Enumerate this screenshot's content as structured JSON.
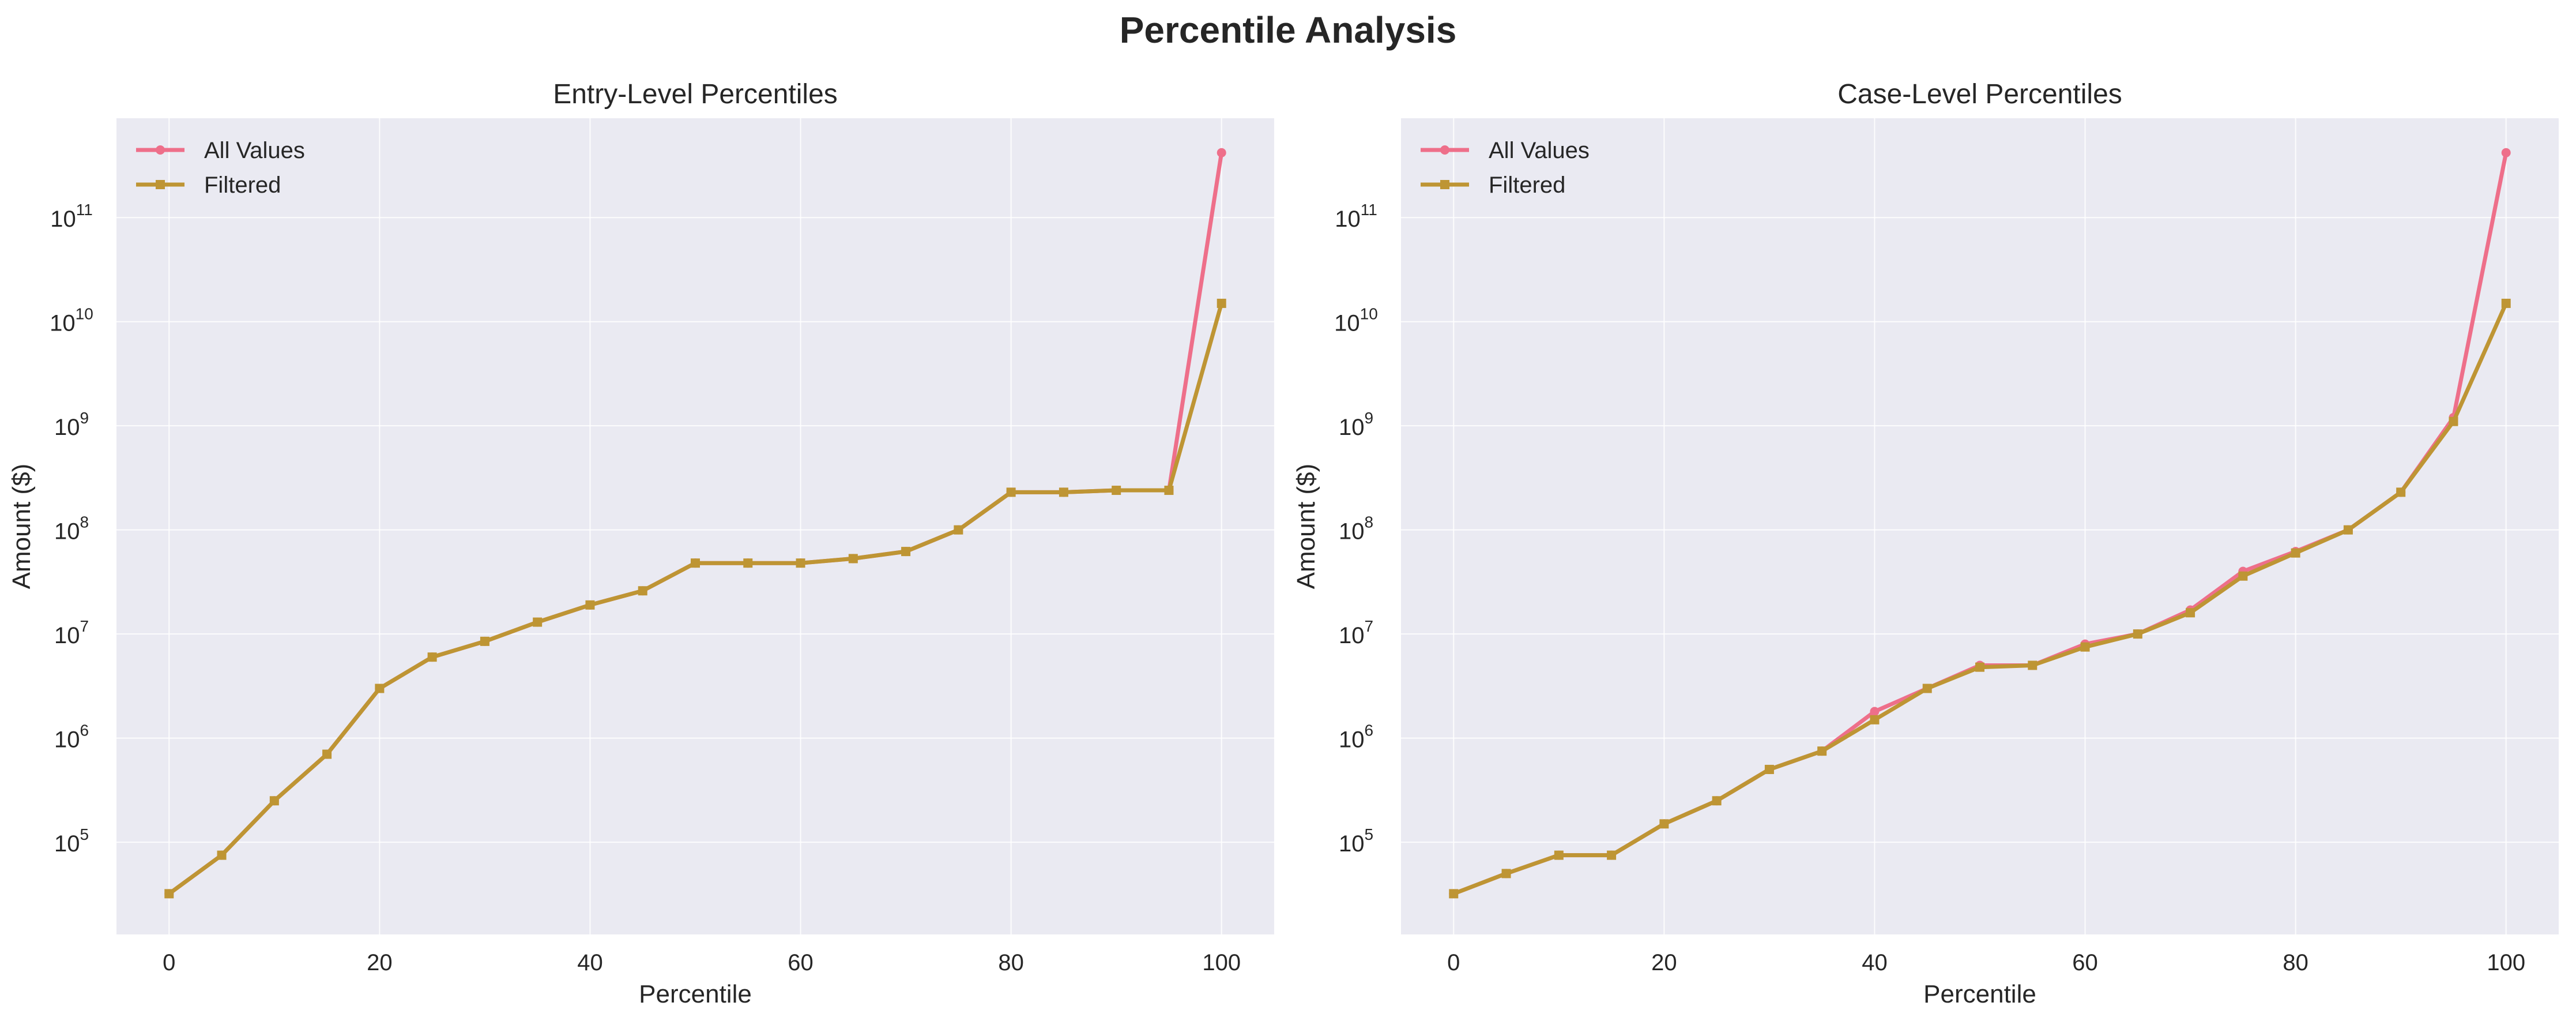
{
  "figure_title": "Percentile Analysis",
  "colors": {
    "all_values": "#EE6F8A",
    "filtered": "#BE9534",
    "background": "#EAEAF2"
  },
  "chart_data": [
    {
      "type": "line",
      "title": "Entry-Level Percentiles",
      "xlabel": "Percentile",
      "ylabel": "Amount ($)",
      "yscale": "log",
      "xlim": [
        -5,
        105
      ],
      "ylim": [
        13000,
        900000000000
      ],
      "xticks": [
        0,
        20,
        40,
        60,
        80,
        100
      ],
      "yticks_exponents": [
        5,
        6,
        7,
        8,
        9,
        10,
        11
      ],
      "grid": true,
      "legend_position": "upper left",
      "x": [
        0,
        5,
        10,
        15,
        20,
        25,
        30,
        35,
        40,
        45,
        50,
        55,
        60,
        65,
        70,
        75,
        80,
        85,
        90,
        95,
        100
      ],
      "series": [
        {
          "name": "All Values",
          "marker": "circle",
          "values": [
            32000,
            75000,
            250000,
            700000,
            3000000,
            6000000,
            8500000,
            13000000,
            19000000,
            26000000,
            48000000,
            48000000,
            48000000,
            53000000,
            62000000,
            100000000,
            230000000,
            230000000,
            240000000,
            240000000,
            420000000000
          ]
        },
        {
          "name": "Filtered",
          "marker": "square",
          "values": [
            32000,
            75000,
            250000,
            700000,
            3000000,
            6000000,
            8500000,
            13000000,
            19000000,
            26000000,
            48000000,
            48000000,
            48000000,
            53000000,
            62000000,
            100000000,
            230000000,
            230000000,
            240000000,
            240000000,
            15000000000
          ]
        }
      ]
    },
    {
      "type": "line",
      "title": "Case-Level Percentiles",
      "xlabel": "Percentile",
      "ylabel": "Amount ($)",
      "yscale": "log",
      "xlim": [
        -5,
        105
      ],
      "ylim": [
        13000,
        900000000000
      ],
      "xticks": [
        0,
        20,
        40,
        60,
        80,
        100
      ],
      "yticks_exponents": [
        5,
        6,
        7,
        8,
        9,
        10,
        11
      ],
      "grid": true,
      "legend_position": "upper left",
      "x": [
        0,
        5,
        10,
        15,
        20,
        25,
        30,
        35,
        40,
        45,
        50,
        55,
        60,
        65,
        70,
        75,
        80,
        85,
        90,
        95,
        100
      ],
      "series": [
        {
          "name": "All Values",
          "marker": "circle",
          "values": [
            32000,
            50000,
            75000,
            75000,
            150000,
            250000,
            500000,
            750000,
            1800000,
            3000000,
            5000000,
            5000000,
            8000000,
            10000000,
            17000000,
            40000000,
            62000000,
            100000000,
            230000000,
            1200000000,
            420000000000
          ]
        },
        {
          "name": "Filtered",
          "marker": "square",
          "values": [
            32000,
            50000,
            75000,
            75000,
            150000,
            250000,
            500000,
            750000,
            1500000,
            3000000,
            4800000,
            5000000,
            7500000,
            10000000,
            16000000,
            36000000,
            60000000,
            100000000,
            230000000,
            1100000000,
            15000000000
          ]
        }
      ]
    }
  ]
}
